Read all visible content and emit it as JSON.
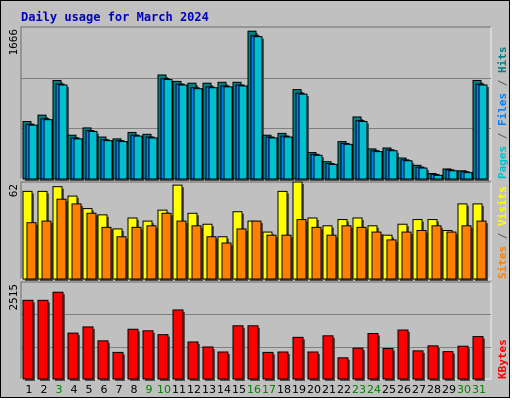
{
  "chart_data": {
    "type": "bar",
    "title": "Daily usage for March 2024",
    "categories": [
      "1",
      "2",
      "3",
      "4",
      "5",
      "6",
      "7",
      "8",
      "9",
      "10",
      "11",
      "12",
      "13",
      "14",
      "15",
      "16",
      "17",
      "18",
      "19",
      "20",
      "21",
      "22",
      "23",
      "24",
      "25",
      "26",
      "27",
      "28",
      "29",
      "30",
      "31"
    ],
    "weekend_days": [
      "3",
      "9",
      "10",
      "16",
      "17",
      "23",
      "24",
      "30",
      "31"
    ],
    "panels": [
      {
        "id": "top",
        "ymax": 1666,
        "ymax_label": "1666",
        "grid": true,
        "right_label_parts": [
          {
            "text": "Pages",
            "color": "#00c0d0"
          },
          {
            "text": " / ",
            "color": "#606060"
          },
          {
            "text": "Files",
            "color": "#0080ff"
          },
          {
            "text": " / ",
            "color": "#606060"
          },
          {
            "text": "Hits",
            "color": "#008080"
          }
        ],
        "series": [
          {
            "name": "Hits",
            "color": "#008080",
            "values": [
              630,
              700,
              1080,
              480,
              560,
              460,
              440,
              510,
              490,
              1140,
              1070,
              1050,
              1050,
              1060,
              1060,
              1620,
              480,
              500,
              980,
              290,
              190,
              410,
              680,
              330,
              340,
              230,
              150,
              60,
              110,
              90,
              1080
            ]
          },
          {
            "name": "Files",
            "color": "#0080ff",
            "values": [
              600,
              660,
              1040,
              450,
              530,
              430,
              420,
              480,
              460,
              1100,
              1040,
              1000,
              1010,
              1020,
              1030,
              1570,
              460,
              470,
              940,
              270,
              170,
              390,
              640,
              310,
              320,
              210,
              130,
              50,
              100,
              80,
              1040
            ]
          },
          {
            "name": "Pages",
            "color": "#00c0d0",
            "values": [
              590,
              650,
              1030,
              440,
              520,
              420,
              410,
              470,
              450,
              1090,
              1030,
              990,
              1000,
              1010,
              1020,
              1560,
              450,
              460,
              930,
              260,
              160,
              380,
              630,
              300,
              310,
              200,
              120,
              40,
              90,
              70,
              1030
            ]
          }
        ]
      },
      {
        "id": "middle",
        "ymax": 62,
        "ymax_label": "62",
        "grid": false,
        "right_label_parts": [
          {
            "text": "Sites",
            "color": "#ff8000"
          },
          {
            "text": " / ",
            "color": "#606060"
          },
          {
            "text": "Visits",
            "color": "#ffff00"
          }
        ],
        "series": [
          {
            "name": "Visits",
            "color": "#ffff00",
            "values": [
              56,
              56,
              59,
              53,
              45,
              41,
              32,
              39,
              37,
              44,
              60,
              42,
              35,
              27,
              43,
              37,
              30,
              56,
              62,
              39,
              34,
              38,
              39,
              34,
              28,
              35,
              38,
              38,
              31,
              48,
              48
            ]
          },
          {
            "name": "Sites",
            "color": "#ff8000",
            "values": [
              36,
              37,
              51,
              48,
              42,
              33,
              27,
              33,
              34,
              42,
              37,
              34,
              27,
              23,
              32,
              37,
              28,
              28,
              38,
              33,
              28,
              34,
              33,
              30,
              25,
              30,
              31,
              34,
              30,
              34,
              37
            ]
          }
        ]
      },
      {
        "id": "bottom",
        "ymax": 2515,
        "ymax_label": "2515",
        "grid": true,
        "right_label_parts": [
          {
            "text": "KBytes",
            "color": "#ff0000"
          }
        ],
        "series": [
          {
            "name": "KBytes",
            "color": "#ff0000",
            "values": [
              2040,
              2040,
              2250,
              1190,
              1350,
              990,
              690,
              1290,
              1250,
              1150,
              1790,
              960,
              830,
              700,
              1380,
              1380,
              690,
              700,
              1080,
              700,
              1120,
              550,
              800,
              1180,
              790,
              1270,
              730,
              860,
              710,
              850,
              1100
            ]
          }
        ]
      }
    ]
  }
}
